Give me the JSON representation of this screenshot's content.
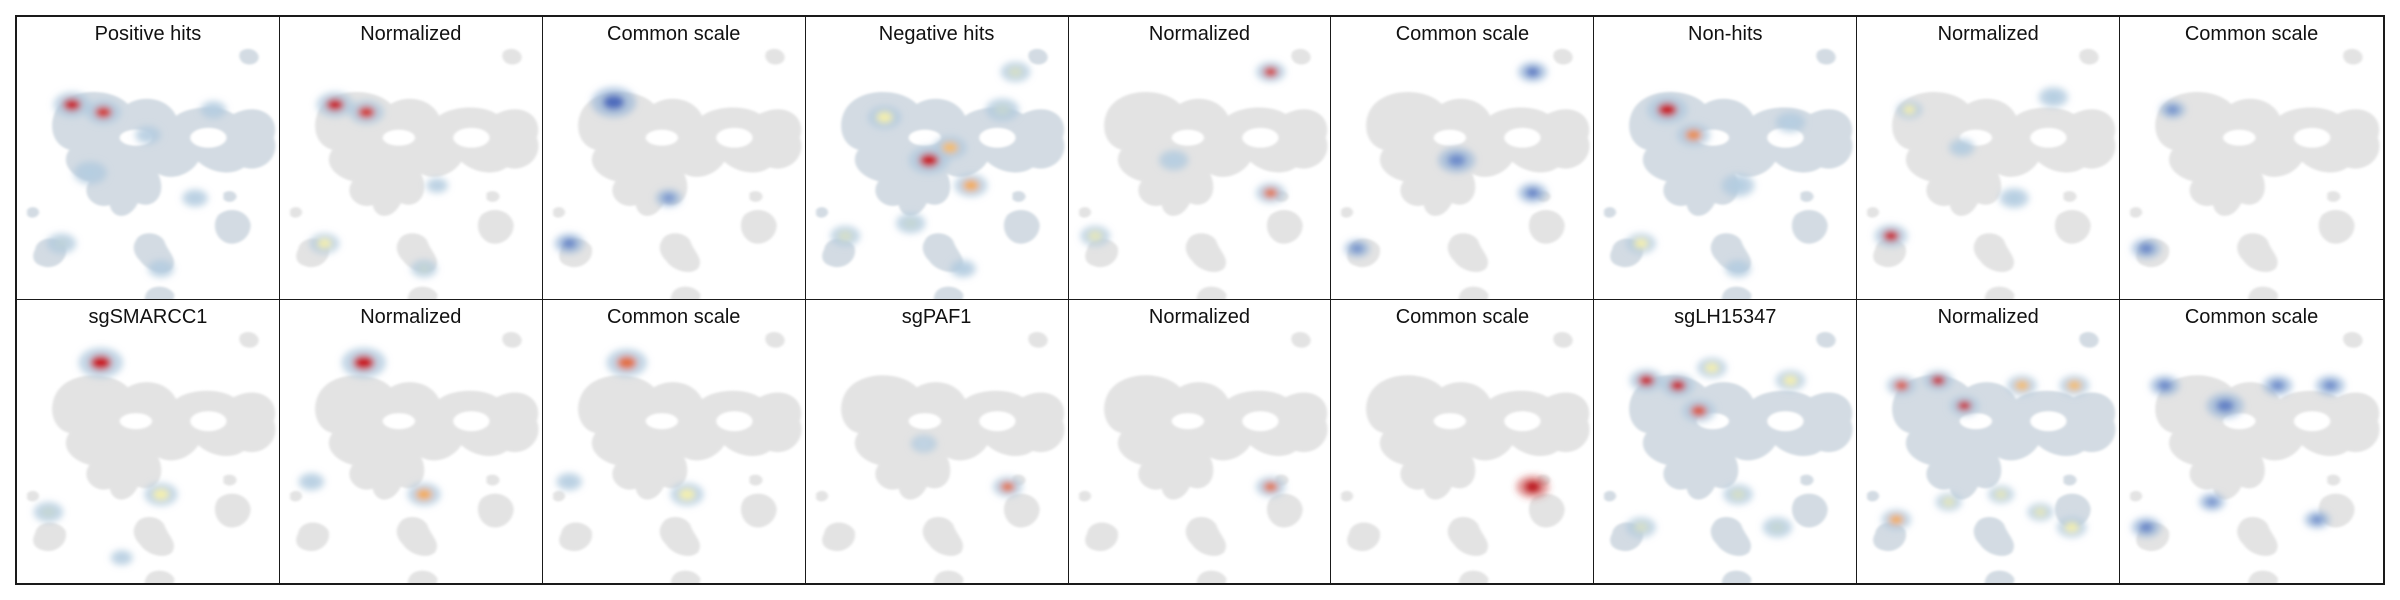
{
  "figure": {
    "rows": [
      {
        "panels": [
          {
            "title": "Positive hits",
            "mode": "multi",
            "hotspots": [
              [
                0.21,
                0.23,
                1.0,
                1.0
              ],
              [
                0.33,
                0.26,
                0.95,
                0.95
              ],
              [
                0.28,
                0.5,
                0.32,
                0.9
              ],
              [
                0.17,
                0.78,
                0.38,
                0.8
              ],
              [
                0.55,
                0.88,
                0.28,
                0.7
              ],
              [
                0.75,
                0.25,
                0.28,
                0.7
              ],
              [
                0.5,
                0.35,
                0.24,
                0.7
              ],
              [
                0.68,
                0.6,
                0.28,
                0.7
              ]
            ]
          },
          {
            "title": "Normalized",
            "mode": "multi",
            "hotspots": [
              [
                0.21,
                0.23,
                1.0,
                1.0
              ],
              [
                0.33,
                0.26,
                0.95,
                0.95
              ],
              [
                0.17,
                0.78,
                0.55,
                0.8
              ],
              [
                0.55,
                0.88,
                0.4,
                0.7
              ],
              [
                0.6,
                0.55,
                0.25,
                0.6
              ]
            ]
          },
          {
            "title": "Common scale",
            "mode": "blue",
            "hotspots": [
              [
                0.27,
                0.22,
                0.9,
                1.2
              ],
              [
                0.1,
                0.78,
                0.55,
                0.8
              ],
              [
                0.48,
                0.6,
                0.35,
                0.7
              ]
            ]
          },
          {
            "title": "Negative hits",
            "mode": "multi",
            "hotspots": [
              [
                0.47,
                0.45,
                1.0,
                1.1
              ],
              [
                0.63,
                0.55,
                0.75,
                0.9
              ],
              [
                0.55,
                0.4,
                0.7,
                0.9
              ],
              [
                0.3,
                0.28,
                0.55,
                0.9
              ],
              [
                0.8,
                0.1,
                0.45,
                0.8
              ],
              [
                0.75,
                0.25,
                0.4,
                0.9
              ],
              [
                0.15,
                0.75,
                0.45,
                0.8
              ],
              [
                0.4,
                0.7,
                0.4,
                0.8
              ],
              [
                0.6,
                0.88,
                0.35,
                0.7
              ]
            ]
          },
          {
            "title": "Normalized",
            "mode": "multi",
            "hotspots": [
              [
                0.77,
                0.1,
                0.95,
                0.8
              ],
              [
                0.77,
                0.58,
                0.85,
                0.8
              ],
              [
                0.1,
                0.75,
                0.5,
                0.8
              ],
              [
                0.4,
                0.45,
                0.3,
                0.8
              ]
            ]
          },
          {
            "title": "Common scale",
            "mode": "blue",
            "hotspots": [
              [
                0.77,
                0.1,
                0.7,
                0.8
              ],
              [
                0.77,
                0.58,
                0.6,
                0.8
              ],
              [
                0.48,
                0.45,
                0.45,
                1.0
              ],
              [
                0.1,
                0.8,
                0.4,
                0.7
              ]
            ]
          },
          {
            "title": "Non-hits",
            "mode": "multi",
            "hotspots": [
              [
                0.28,
                0.25,
                1.0,
                1.1
              ],
              [
                0.38,
                0.35,
                0.8,
                0.9
              ],
              [
                0.18,
                0.78,
                0.55,
                0.8
              ],
              [
                0.55,
                0.55,
                0.35,
                0.9
              ],
              [
                0.75,
                0.3,
                0.3,
                0.8
              ],
              [
                0.55,
                0.88,
                0.3,
                0.7
              ]
            ]
          },
          {
            "title": "Normalized",
            "mode": "multi",
            "hotspots": [
              [
                0.13,
                0.75,
                1.0,
                0.9
              ],
              [
                0.2,
                0.25,
                0.55,
                0.7
              ],
              [
                0.4,
                0.4,
                0.35,
                0.7
              ],
              [
                0.75,
                0.2,
                0.35,
                0.8
              ],
              [
                0.6,
                0.6,
                0.35,
                0.8
              ]
            ]
          },
          {
            "title": "Common scale",
            "mode": "blue",
            "hotspots": [
              [
                0.1,
                0.8,
                0.55,
                0.8
              ],
              [
                0.2,
                0.25,
                0.4,
                0.7
              ]
            ]
          }
        ]
      },
      {
        "panels": [
          {
            "title": "sgSMARCC1",
            "mode": "multi",
            "hotspots": [
              [
                0.32,
                0.13,
                1.0,
                1.2
              ],
              [
                0.55,
                0.65,
                0.55,
                0.9
              ],
              [
                0.12,
                0.72,
                0.4,
                0.8
              ],
              [
                0.4,
                0.9,
                0.25,
                0.6
              ]
            ]
          },
          {
            "title": "Normalized",
            "mode": "multi",
            "hotspots": [
              [
                0.32,
                0.13,
                1.0,
                1.2
              ],
              [
                0.55,
                0.65,
                0.75,
                0.9
              ],
              [
                0.12,
                0.6,
                0.3,
                0.7
              ]
            ]
          },
          {
            "title": "Common scale",
            "mode": "multi",
            "hotspots": [
              [
                0.32,
                0.13,
                0.85,
                1.1
              ],
              [
                0.55,
                0.65,
                0.55,
                0.9
              ],
              [
                0.1,
                0.6,
                0.3,
                0.7
              ]
            ]
          },
          {
            "title": "sgPAF1",
            "mode": "multi",
            "hotspots": [
              [
                0.77,
                0.62,
                0.85,
                0.8
              ],
              [
                0.45,
                0.45,
                0.1,
                0.7
              ]
            ]
          },
          {
            "title": "Normalized",
            "mode": "multi",
            "hotspots": [
              [
                0.77,
                0.62,
                0.85,
                0.8
              ]
            ]
          },
          {
            "title": "Common scale",
            "mode": "solid",
            "hotspots": [
              [
                0.77,
                0.62,
                1.0,
                0.9
              ]
            ]
          },
          {
            "title": "sgLH15347",
            "mode": "multi",
            "hotspots": [
              [
                0.2,
                0.2,
                1.0,
                0.9
              ],
              [
                0.32,
                0.22,
                1.0,
                0.9
              ],
              [
                0.4,
                0.32,
                0.9,
                0.9
              ],
              [
                0.45,
                0.15,
                0.55,
                0.8
              ],
              [
                0.75,
                0.2,
                0.55,
                0.8
              ],
              [
                0.55,
                0.65,
                0.45,
                0.8
              ],
              [
                0.7,
                0.78,
                0.4,
                0.8
              ],
              [
                0.18,
                0.78,
                0.45,
                0.8
              ]
            ]
          },
          {
            "title": "Normalized",
            "mode": "multi",
            "hotspots": [
              [
                0.17,
                0.22,
                0.9,
                0.8
              ],
              [
                0.31,
                0.2,
                1.0,
                0.8
              ],
              [
                0.41,
                0.3,
                1.0,
                0.8
              ],
              [
                0.63,
                0.22,
                0.7,
                0.8
              ],
              [
                0.83,
                0.22,
                0.7,
                0.8
              ],
              [
                0.15,
                0.75,
                0.75,
                0.8
              ],
              [
                0.35,
                0.68,
                0.5,
                0.7
              ],
              [
                0.55,
                0.65,
                0.5,
                0.7
              ],
              [
                0.7,
                0.72,
                0.5,
                0.7
              ],
              [
                0.82,
                0.78,
                0.55,
                0.8
              ]
            ]
          },
          {
            "title": "Common scale",
            "mode": "blue",
            "hotspots": [
              [
                0.17,
                0.22,
                0.55,
                0.8
              ],
              [
                0.4,
                0.3,
                0.6,
                1.0
              ],
              [
                0.6,
                0.22,
                0.45,
                0.8
              ],
              [
                0.8,
                0.22,
                0.45,
                0.8
              ],
              [
                0.1,
                0.78,
                0.55,
                0.8
              ],
              [
                0.35,
                0.68,
                0.35,
                0.7
              ],
              [
                0.75,
                0.75,
                0.4,
                0.7
              ]
            ]
          }
        ]
      }
    ]
  }
}
